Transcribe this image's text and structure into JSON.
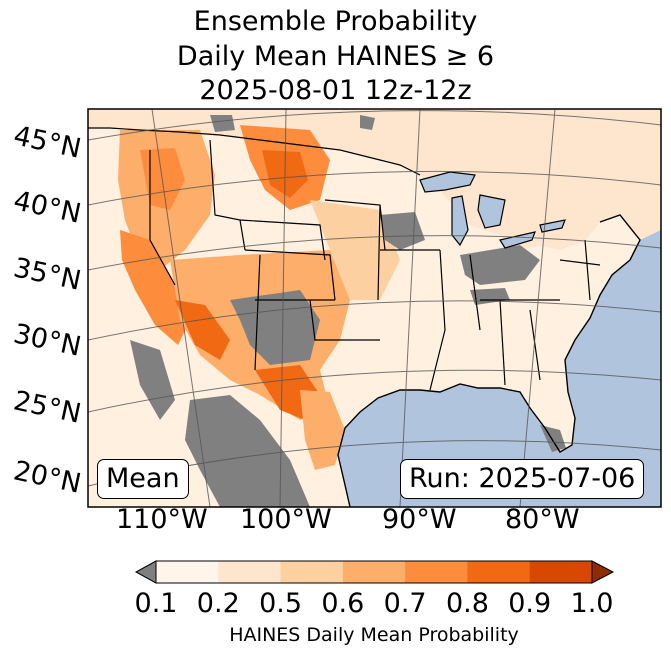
{
  "title": {
    "line1": "Ensemble Probability",
    "line2": "Daily Mean HAINES ≥ 6",
    "line3": "2025-08-01 12z-12z"
  },
  "map": {
    "latitude_labels": [
      "45°N",
      "40°N",
      "35°N",
      "30°N",
      "25°N",
      "20°N"
    ],
    "longitude_labels": [
      "110°W",
      "100°W",
      "90°W",
      "80°W"
    ],
    "mean_label": "Mean",
    "run_label": "Run: 2025-07-06"
  },
  "colorbar": {
    "label": "HAINES Daily Mean Probability",
    "ticks": [
      "0.1",
      "0.2",
      "0.5",
      "0.6",
      "0.7",
      "0.8",
      "0.9",
      "1.0"
    ],
    "under_color": "#7f7f7f",
    "colors": [
      "#fff5eb",
      "#fee6ce",
      "#fdd0a2",
      "#fdae6b",
      "#fd8d3c",
      "#f16913",
      "#d94801"
    ],
    "over_color": "#8c2d04"
  },
  "colors": {
    "ocean": "#b0c4de",
    "land_low": "#fee6ce",
    "missing": "#808080"
  }
}
